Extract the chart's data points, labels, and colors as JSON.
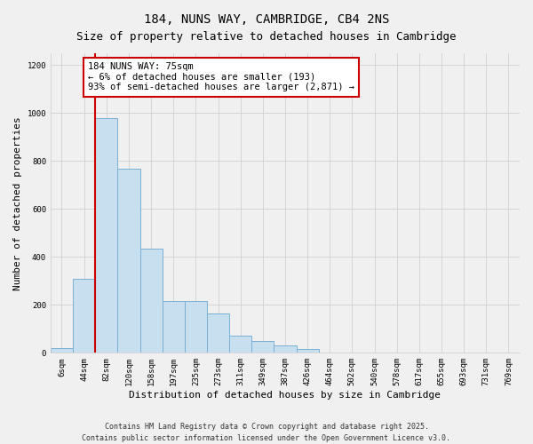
{
  "title": "184, NUNS WAY, CAMBRIDGE, CB4 2NS",
  "subtitle": "Size of property relative to detached houses in Cambridge",
  "xlabel": "Distribution of detached houses by size in Cambridge",
  "ylabel": "Number of detached properties",
  "categories": [
    "6sqm",
    "44sqm",
    "82sqm",
    "120sqm",
    "158sqm",
    "197sqm",
    "235sqm",
    "273sqm",
    "311sqm",
    "349sqm",
    "387sqm",
    "426sqm",
    "464sqm",
    "502sqm",
    "540sqm",
    "578sqm",
    "617sqm",
    "655sqm",
    "693sqm",
    "731sqm",
    "769sqm"
  ],
  "values": [
    20,
    308,
    980,
    770,
    435,
    215,
    215,
    165,
    70,
    48,
    32,
    15,
    3,
    3,
    1,
    0,
    0,
    0,
    0,
    0,
    2
  ],
  "bar_color": "#c8dff0",
  "bar_edge_color": "#7ab0d4",
  "vline_color": "#cc0000",
  "vline_x": 1.5,
  "ylim": [
    0,
    1250
  ],
  "yticks": [
    0,
    200,
    400,
    600,
    800,
    1000,
    1200
  ],
  "background_color": "#f0f0f0",
  "plot_bg_color": "#f0f0f0",
  "annotation_box_text_line1": "184 NUNS WAY: 75sqm",
  "annotation_box_text_line2": "← 6% of detached houses are smaller (193)",
  "annotation_box_text_line3": "93% of semi-detached houses are larger (2,871) →",
  "annotation_box_color": "#ffffff",
  "annotation_box_edge_color": "#cc0000",
  "footer_line1": "Contains HM Land Registry data © Crown copyright and database right 2025.",
  "footer_line2": "Contains public sector information licensed under the Open Government Licence v3.0.",
  "title_fontsize": 10,
  "subtitle_fontsize": 9,
  "xlabel_fontsize": 8,
  "ylabel_fontsize": 8,
  "tick_fontsize": 6.5,
  "annotation_fontsize": 7.5,
  "footer_fontsize": 6
}
